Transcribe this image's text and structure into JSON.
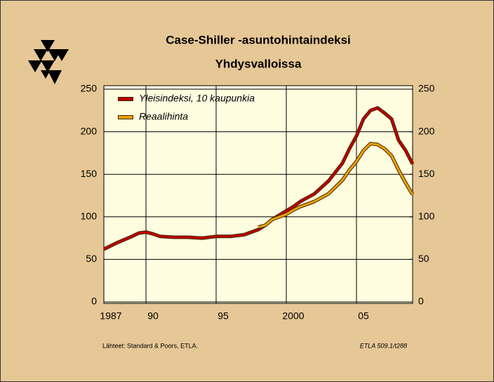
{
  "chart_data": {
    "type": "line",
    "title": "Case-Shiller -asuntohintaindeksi",
    "subtitle": "Yhdysvalloissa",
    "x": [
      1987,
      1988,
      1989,
      1989.5,
      1990,
      1990.5,
      1991,
      1992,
      1993,
      1994,
      1995,
      1996,
      1997,
      1998,
      1998.5,
      1999,
      2000,
      2000.5,
      2001,
      2002,
      2003,
      2004,
      2004.5,
      2005,
      2005.5,
      2006,
      2006.5,
      2007,
      2007.5,
      2008,
      2008.5,
      2009
    ],
    "series": [
      {
        "name": "Yleisindeksi, 10 kaupunkia",
        "color": "#c00000",
        "values": [
          62,
          70,
          77,
          81,
          82,
          80,
          77,
          76,
          76,
          75,
          77,
          77,
          79,
          85,
          90,
          97,
          107,
          112,
          118,
          127,
          142,
          163,
          180,
          195,
          215,
          225,
          228,
          222,
          215,
          190,
          178,
          162
        ]
      },
      {
        "name": "Reaalihinta",
        "color": "#f0a000",
        "values": [
          null,
          null,
          null,
          null,
          null,
          null,
          null,
          null,
          null,
          null,
          null,
          null,
          null,
          88,
          90,
          97,
          103,
          108,
          112,
          118,
          127,
          143,
          155,
          165,
          178,
          186,
          185,
          180,
          172,
          155,
          140,
          126
        ]
      }
    ],
    "xlim": [
      1987,
      2009
    ],
    "xticks": [
      1987,
      {
        "value": 1990,
        "label": "90"
      },
      {
        "value": 1995,
        "label": "95"
      },
      2000,
      {
        "value": 2005,
        "label": "05"
      }
    ],
    "ylim": [
      0,
      250
    ],
    "yticks": [
      0,
      50,
      100,
      150,
      200,
      250
    ],
    "y2lim": [
      0,
      250
    ],
    "y2ticks": [
      0,
      50,
      100,
      150,
      200,
      250
    ],
    "grid": true,
    "legend": "top-left",
    "source": "Lähteet:   Standard & Poors, ETLA.",
    "code": "ETLA 509.1/t288"
  }
}
